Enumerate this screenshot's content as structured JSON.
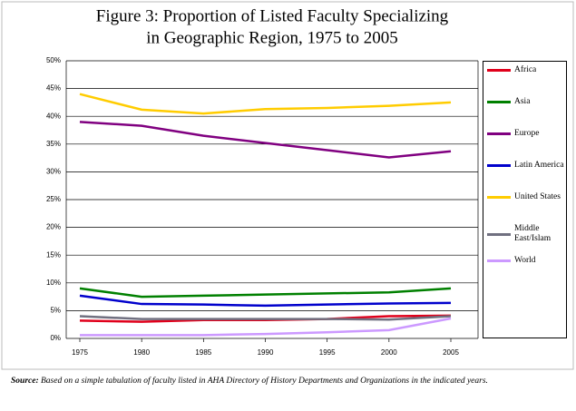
{
  "chart_data": {
    "type": "line",
    "title": [
      "Figure 3: Proportion of Listed Faculty Specializing",
      "in Geographic Region, 1975 to 2005"
    ],
    "x": [
      1975,
      1980,
      1985,
      1990,
      1995,
      2000,
      2005
    ],
    "xlim": [
      1975,
      2005
    ],
    "xticks": [
      1975,
      1980,
      1985,
      1990,
      1995,
      2000,
      2005
    ],
    "ylim": [
      0,
      50
    ],
    "yticks": [
      {
        "value": 0,
        "label": "0%"
      },
      {
        "value": 5,
        "label": "5%"
      },
      {
        "value": 10,
        "label": "10%"
      },
      {
        "value": 15,
        "label": "15%"
      },
      {
        "value": 20,
        "label": "20%"
      },
      {
        "value": 25,
        "label": "25%"
      },
      {
        "value": 30,
        "label": "30%"
      },
      {
        "value": 35,
        "label": "35%"
      },
      {
        "value": 40,
        "label": "40%"
      },
      {
        "value": 45,
        "label": "45%"
      },
      {
        "value": 50,
        "label": "50%"
      }
    ],
    "grid": true,
    "legend": "right",
    "series": [
      {
        "name": "Africa",
        "color": "#e0001b",
        "values": [
          3.2,
          3.0,
          3.3,
          3.3,
          3.5,
          4.0,
          4.1
        ]
      },
      {
        "name": "Asia",
        "color": "#008000",
        "values": [
          9.0,
          7.5,
          7.7,
          7.9,
          8.1,
          8.3,
          9.0
        ]
      },
      {
        "name": "Europe",
        "color": "#800080",
        "values": [
          39.0,
          38.3,
          36.5,
          35.2,
          33.9,
          32.6,
          33.7
        ]
      },
      {
        "name": "Latin America",
        "color": "#0000cc",
        "values": [
          7.7,
          6.2,
          6.1,
          5.9,
          6.1,
          6.3,
          6.4
        ]
      },
      {
        "name": "United States",
        "color": "#ffcc00",
        "values": [
          44.0,
          41.2,
          40.5,
          41.3,
          41.5,
          41.9,
          42.5
        ]
      },
      {
        "name": "Middle East/Islam",
        "color": "#707080",
        "values": [
          4.0,
          3.5,
          3.5,
          3.5,
          3.5,
          3.4,
          4.0
        ]
      },
      {
        "name": "World",
        "color": "#cc99ff",
        "values": [
          0.6,
          0.6,
          0.6,
          0.8,
          1.1,
          1.5,
          3.6
        ]
      }
    ],
    "source_label": "Source:",
    "source_text": "Based on a simple tabulation of faculty listed in AHA Directory of History Departments and Organizations in the indicated years."
  }
}
